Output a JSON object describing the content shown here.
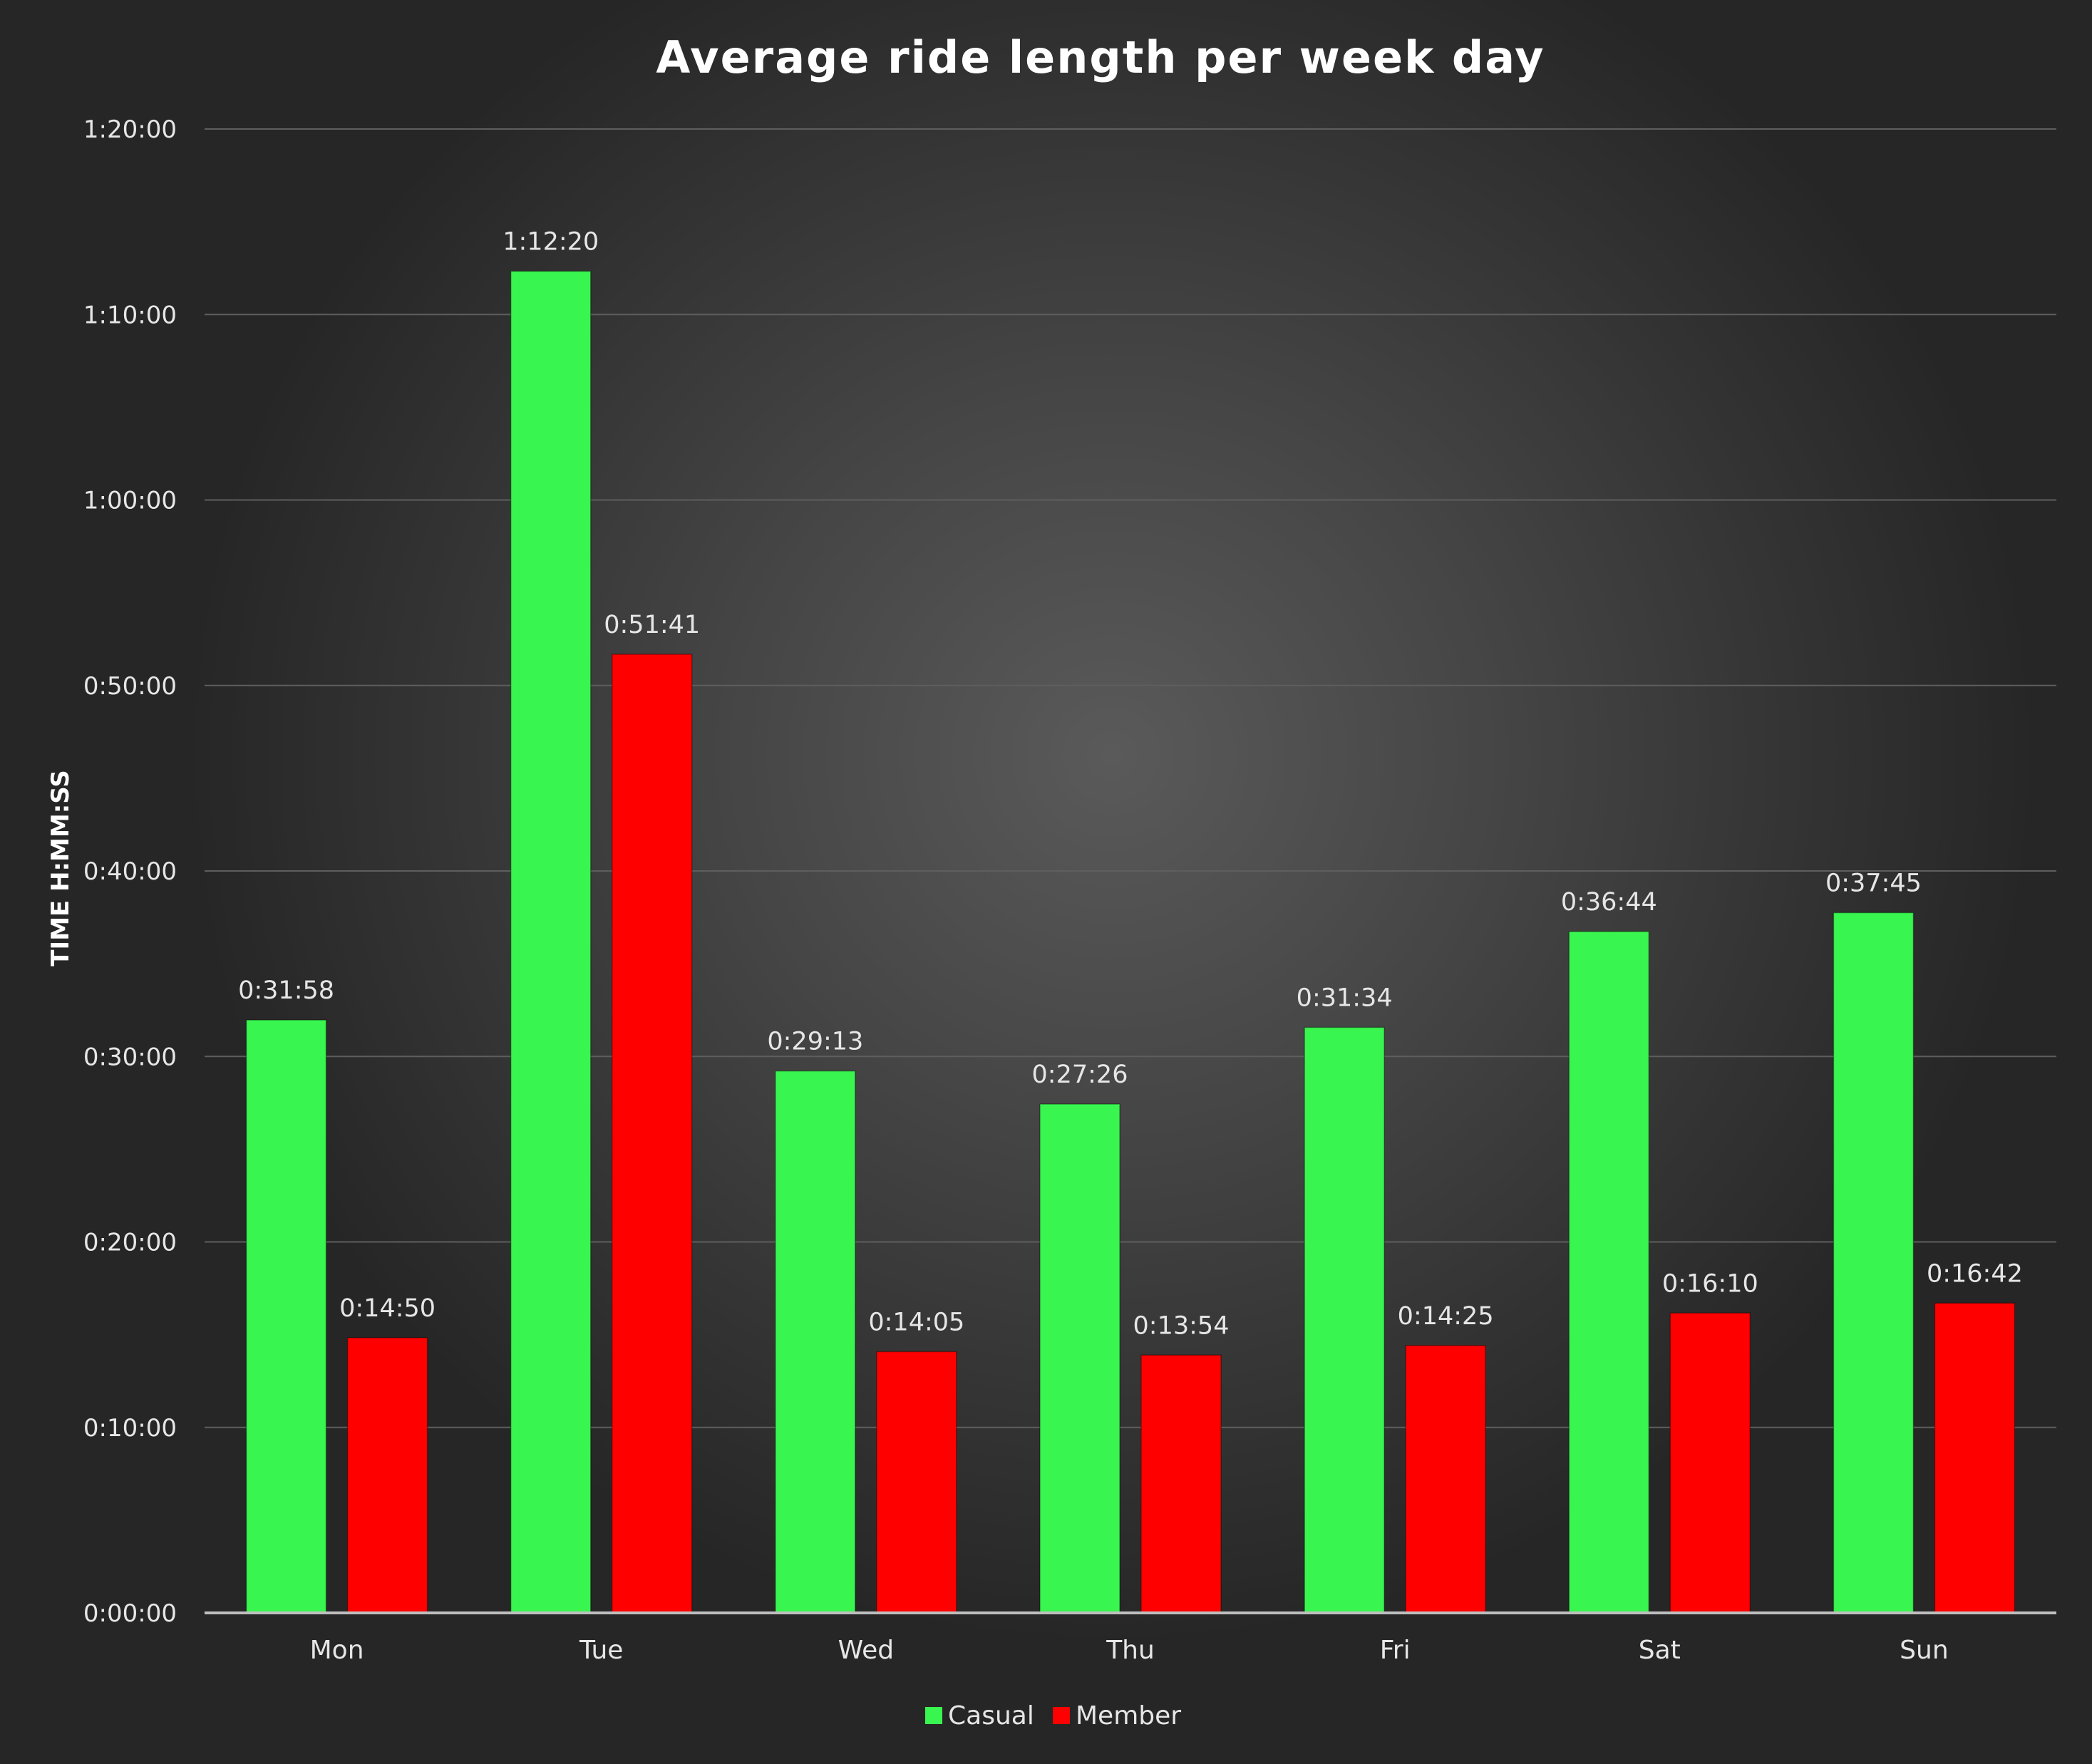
{
  "chart_data": {
    "type": "bar",
    "title": "Average ride length per week day",
    "xlabel": "",
    "ylabel": "TIME H:MM:SS",
    "categories": [
      "Mon",
      "Tue",
      "Wed",
      "Thu",
      "Fri",
      "Sat",
      "Sun"
    ],
    "y_unit": "seconds",
    "ylim": [
      0,
      4800
    ],
    "y_ticks": [
      {
        "value": 0,
        "label": "0:00:00"
      },
      {
        "value": 600,
        "label": "0:10:00"
      },
      {
        "value": 1200,
        "label": "0:20:00"
      },
      {
        "value": 1800,
        "label": "0:30:00"
      },
      {
        "value": 2400,
        "label": "0:40:00"
      },
      {
        "value": 3000,
        "label": "0:50:00"
      },
      {
        "value": 3600,
        "label": "1:00:00"
      },
      {
        "value": 4200,
        "label": "1:10:00"
      },
      {
        "value": 4800,
        "label": "1:20:00"
      }
    ],
    "grid": true,
    "legend_position": "bottom",
    "series": [
      {
        "name": "Casual",
        "color": "#39f54f",
        "values": [
          1918,
          4340,
          1753,
          1646,
          1894,
          2204,
          2265
        ],
        "labels": [
          "0:31:58",
          "1:12:20",
          "0:29:13",
          "0:27:26",
          "0:31:34",
          "0:36:44",
          "0:37:45"
        ]
      },
      {
        "name": "Member",
        "color": "#ff0000",
        "values": [
          890,
          3101,
          845,
          834,
          865,
          970,
          1002
        ],
        "labels": [
          "0:14:50",
          "0:51:41",
          "0:14:05",
          "0:13:54",
          "0:14:25",
          "0:16:10",
          "0:16:42"
        ]
      }
    ]
  }
}
